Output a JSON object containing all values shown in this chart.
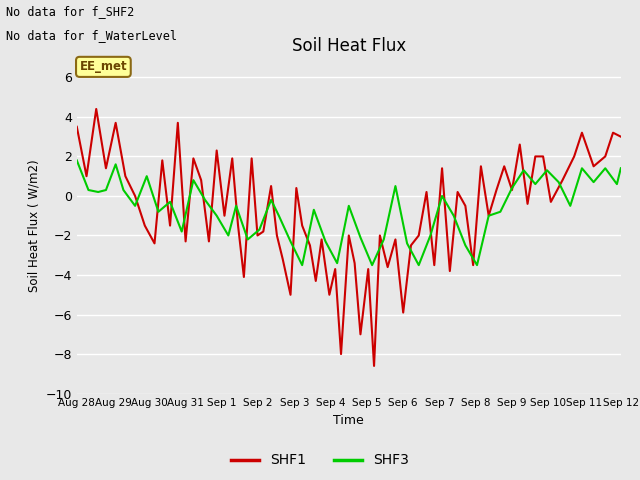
{
  "title": "Soil Heat Flux",
  "xlabel": "Time",
  "ylabel": "Soil Heat Flux ( W/m2)",
  "ylim": [
    -10,
    7
  ],
  "yticks": [
    -10,
    -8,
    -6,
    -4,
    -2,
    0,
    2,
    4,
    6
  ],
  "bg_color": "#e8e8e8",
  "grid_color": "white",
  "top_left_line1": "No data for f_SHF2",
  "top_left_line2": "No data for f_WaterLevel",
  "annotation_label": "EE_met",
  "x_tick_labels": [
    "Aug 28",
    "Aug 29",
    "Aug 30",
    "Aug 31",
    "Sep 1",
    "Sep 2",
    "Sep 3",
    "Sep 4",
    "Sep 5",
    "Sep 6",
    "Sep 7",
    "Sep 8",
    "Sep 9",
    "Sep 10",
    "Sep 11",
    "Sep 12"
  ],
  "shf1_color": "#cc0000",
  "shf3_color": "#00cc00",
  "shf1_lw": 1.5,
  "shf3_lw": 1.5,
  "shf1_x": [
    0.0,
    0.25,
    0.5,
    0.75,
    1.0,
    1.25,
    1.5,
    1.75,
    2.0,
    2.2,
    2.4,
    2.6,
    2.8,
    3.0,
    3.2,
    3.4,
    3.6,
    3.8,
    4.0,
    4.15,
    4.3,
    4.5,
    4.65,
    4.8,
    5.0,
    5.15,
    5.3,
    5.5,
    5.65,
    5.8,
    6.0,
    6.15,
    6.3,
    6.5,
    6.65,
    6.8,
    7.0,
    7.15,
    7.3,
    7.5,
    7.65,
    7.8,
    8.0,
    8.2,
    8.4,
    8.6,
    8.8,
    9.0,
    9.2,
    9.4,
    9.6,
    9.8,
    10.0,
    10.2,
    10.4,
    10.6,
    10.8,
    11.0,
    11.2,
    11.4,
    11.6,
    11.8,
    12.0,
    12.2,
    12.5,
    12.8,
    13.0,
    13.3,
    13.6,
    13.8,
    14.0
  ],
  "shf1_y": [
    3.5,
    1.0,
    4.4,
    1.4,
    3.7,
    1.0,
    0.0,
    -1.5,
    -2.4,
    1.8,
    -1.5,
    3.7,
    -2.3,
    1.9,
    0.8,
    -2.3,
    2.3,
    -1.0,
    1.9,
    -1.5,
    -4.1,
    1.9,
    -2.0,
    -1.8,
    0.5,
    -2.0,
    -3.2,
    -5.0,
    0.4,
    -1.5,
    -2.5,
    -4.3,
    -2.2,
    -5.0,
    -3.7,
    -8.0,
    -2.0,
    -3.4,
    -7.0,
    -3.7,
    -8.6,
    -2.0,
    -3.6,
    -2.2,
    -5.9,
    -2.5,
    -2.0,
    0.2,
    -3.5,
    1.4,
    -3.8,
    0.2,
    -0.5,
    -3.5,
    1.5,
    -1.0,
    0.3,
    1.5,
    0.3,
    2.6,
    -0.4,
    2.0,
    2.0,
    -0.3,
    0.8,
    2.0,
    3.2,
    1.5,
    2.0,
    3.2,
    3.0
  ],
  "shf3_x": [
    0.0,
    0.3,
    0.55,
    0.75,
    1.0,
    1.2,
    1.5,
    1.8,
    2.1,
    2.4,
    2.7,
    3.0,
    3.3,
    3.6,
    3.9,
    4.1,
    4.4,
    4.7,
    5.0,
    5.2,
    5.5,
    5.8,
    6.1,
    6.4,
    6.7,
    7.0,
    7.3,
    7.6,
    7.9,
    8.2,
    8.5,
    8.8,
    9.1,
    9.4,
    9.7,
    10.0,
    10.3,
    10.6,
    10.9,
    11.2,
    11.5,
    11.8,
    12.1,
    12.4,
    12.7,
    13.0,
    13.3,
    13.6,
    13.9,
    14.0
  ],
  "shf3_y": [
    1.8,
    0.3,
    0.2,
    0.3,
    1.6,
    0.3,
    -0.5,
    1.0,
    -0.8,
    -0.3,
    -1.8,
    0.8,
    -0.2,
    -1.0,
    -2.0,
    -0.5,
    -2.2,
    -1.7,
    -0.2,
    -1.0,
    -2.3,
    -3.5,
    -0.7,
    -2.3,
    -3.4,
    -0.5,
    -2.1,
    -3.5,
    -2.2,
    0.5,
    -2.4,
    -3.5,
    -2.0,
    0.0,
    -1.0,
    -2.5,
    -3.5,
    -1.0,
    -0.8,
    0.4,
    1.3,
    0.6,
    1.3,
    0.7,
    -0.5,
    1.4,
    0.7,
    1.4,
    0.6,
    1.4
  ]
}
